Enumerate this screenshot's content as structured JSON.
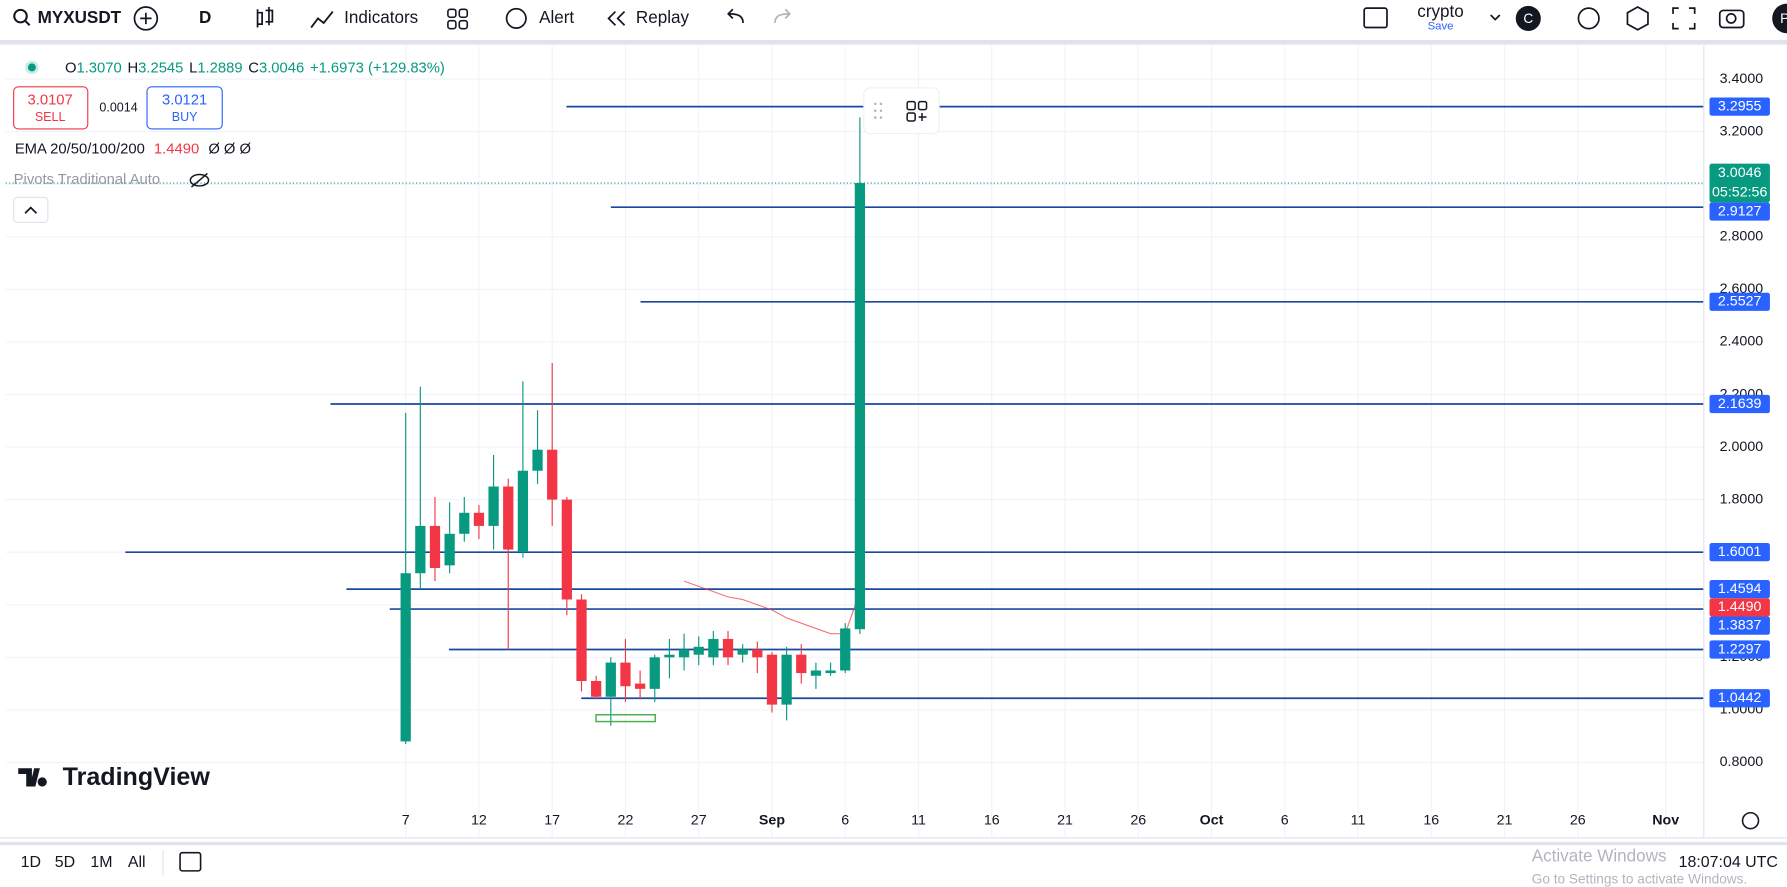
{
  "toolbar": {
    "symbol": "MYXUSDT",
    "interval": "D",
    "indicators": "Indicators",
    "alert": "Alert",
    "replay": "Replay",
    "layout_name": "crypto",
    "save": "Save",
    "avatar_c": "C",
    "avatar_p": "P"
  },
  "legend": {
    "o_label": "O",
    "o": "1.3070",
    "h_label": "H",
    "h": "3.2545",
    "l_label": "L",
    "l": "1.2889",
    "c_label": "C",
    "c": "3.0046",
    "change": "+1.6973 (+129.83%)"
  },
  "trade": {
    "sell_price": "3.0107",
    "sell": "SELL",
    "spread": "0.0014",
    "buy_price": "3.0121",
    "buy": "BUY"
  },
  "indicators": {
    "ema_name": "EMA 20/50/100/200",
    "ema_value": "1.4490",
    "ema_extra": "Ø Ø Ø",
    "pivots_name": "Pivots Traditional Auto"
  },
  "bottom_bar": {
    "ranges": [
      "1D",
      "5D",
      "1M",
      "All"
    ],
    "clock": "18:07:04 UTC"
  },
  "watermark": {
    "line1": "Activate Windows",
    "line2": "Go to Settings to activate Windows."
  },
  "logo": "TradingView",
  "chart_data": {
    "type": "candlestick",
    "x": [
      0,
      1,
      2,
      3,
      4,
      5,
      6,
      7,
      8,
      9,
      10,
      11,
      12,
      13,
      14,
      15,
      16,
      17,
      18,
      19,
      20,
      21,
      22,
      23,
      24,
      25,
      26,
      27,
      28,
      29,
      30,
      31
    ],
    "open": [
      0.88,
      1.52,
      1.7,
      1.55,
      1.67,
      1.75,
      1.7,
      1.85,
      1.6,
      1.91,
      1.99,
      1.8,
      1.42,
      1.11,
      1.05,
      1.18,
      1.1,
      1.08,
      1.2,
      1.2,
      1.21,
      1.2,
      1.27,
      1.21,
      1.23,
      1.21,
      1.02,
      1.21,
      1.13,
      1.14,
      1.15,
      1.307
    ],
    "high": [
      2.13,
      2.23,
      1.81,
      1.79,
      1.81,
      1.78,
      1.97,
      1.88,
      2.25,
      2.14,
      2.32,
      1.81,
      1.44,
      1.13,
      1.2,
      1.27,
      1.15,
      1.21,
      1.27,
      1.29,
      1.28,
      1.3,
      1.3,
      1.25,
      1.26,
      1.22,
      1.24,
      1.25,
      1.18,
      1.18,
      1.33,
      3.2545
    ],
    "low": [
      0.87,
      1.46,
      1.49,
      1.52,
      1.64,
      1.65,
      1.61,
      1.23,
      1.58,
      1.86,
      1.7,
      1.36,
      1.07,
      1.04,
      0.94,
      1.03,
      1.04,
      1.03,
      1.12,
      1.15,
      1.17,
      1.17,
      1.17,
      1.18,
      1.14,
      0.99,
      0.96,
      1.1,
      1.08,
      1.13,
      1.14,
      1.2889
    ],
    "close": [
      1.52,
      1.7,
      1.54,
      1.67,
      1.75,
      1.7,
      1.85,
      1.61,
      1.91,
      1.99,
      1.8,
      1.42,
      1.11,
      1.05,
      1.18,
      1.09,
      1.08,
      1.2,
      1.21,
      1.23,
      1.24,
      1.27,
      1.2,
      1.23,
      1.2,
      1.02,
      1.21,
      1.14,
      1.15,
      1.15,
      1.31,
      3.0046
    ],
    "up_color": "#089981",
    "down_color": "#f23645",
    "xlim": [
      -27.3,
      88.6
    ],
    "xticks": [
      {
        "value": 0,
        "label": "7"
      },
      {
        "value": 5,
        "label": "12"
      },
      {
        "value": 10,
        "label": "17"
      },
      {
        "value": 15,
        "label": "22"
      },
      {
        "value": 20,
        "label": "27"
      },
      {
        "value": 25,
        "label": "Sep"
      },
      {
        "value": 30,
        "label": "6"
      },
      {
        "value": 35,
        "label": "11"
      },
      {
        "value": 40,
        "label": "16"
      },
      {
        "value": 45,
        "label": "21"
      },
      {
        "value": 50,
        "label": "26"
      },
      {
        "value": 55,
        "label": "Oct"
      },
      {
        "value": 60,
        "label": "6"
      },
      {
        "value": 65,
        "label": "11"
      },
      {
        "value": 70,
        "label": "16"
      },
      {
        "value": 75,
        "label": "21"
      },
      {
        "value": 80,
        "label": "26"
      },
      {
        "value": 86,
        "label": "Nov"
      }
    ],
    "ylim": [
      0.665,
      3.527
    ],
    "yticks": [
      {
        "value": 0.8,
        "label": "0.8000"
      },
      {
        "value": 1.0,
        "label": "1.0000"
      },
      {
        "value": 1.2,
        "label": "1.2000"
      },
      {
        "value": 1.4,
        "label": "1.4000"
      },
      {
        "value": 1.6,
        "label": "1.6000"
      },
      {
        "value": 1.8,
        "label": "1.8000"
      },
      {
        "value": 2.0,
        "label": "2.0000"
      },
      {
        "value": 2.2,
        "label": "2.2000"
      },
      {
        "value": 2.4,
        "label": "2.4000"
      },
      {
        "value": 2.6,
        "label": "2.6000"
      },
      {
        "value": 2.8,
        "label": "2.8000"
      },
      {
        "value": 3.0,
        "label": "3.0000"
      },
      {
        "value": 3.2,
        "label": "3.2000"
      },
      {
        "value": 3.4,
        "label": "3.4000"
      }
    ],
    "grid": true,
    "levels": {
      "values": [
        3.2955,
        2.9127,
        2.5527,
        2.1639,
        1.6001,
        1.4594,
        1.3837,
        1.2297,
        1.0442
      ],
      "color": "#1848a0",
      "badge_color": "#2962ff"
    },
    "ema": {
      "x": [
        19,
        20,
        21,
        22,
        23,
        24,
        25,
        26,
        27,
        28,
        29,
        30,
        31
      ],
      "values": [
        1.49,
        1.47,
        1.45,
        1.43,
        1.42,
        1.4,
        1.38,
        1.35,
        1.33,
        1.31,
        1.29,
        1.29,
        1.449
      ],
      "color": "#f23645",
      "badge": {
        "value": 1.449,
        "label": "1.4490"
      }
    },
    "last_price": {
      "value": 3.0046,
      "countdown": "05:52:56",
      "color": "#089981"
    }
  }
}
